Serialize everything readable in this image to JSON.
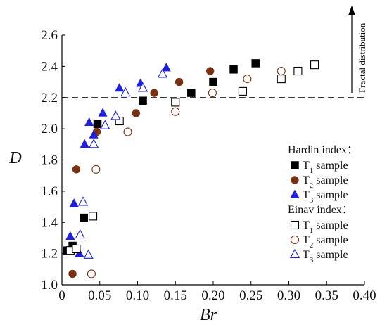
{
  "chart_data": {
    "type": "scatter",
    "title": "",
    "xlabel": "Br",
    "ylabel": "D",
    "xlim": [
      0,
      0.4
    ],
    "ylim": [
      1.0,
      2.6
    ],
    "xticks": [
      "0",
      "0.05",
      "0.10",
      "0.15",
      "0.20",
      "0.25",
      "0.30",
      "0.35",
      "0.40"
    ],
    "yticks": [
      "1.0",
      "1.2",
      "1.4",
      "1.6",
      "1.8",
      "2.0",
      "2.2",
      "2.4",
      "2.6"
    ],
    "grid": false,
    "legend_position": "right",
    "reference_line": {
      "y": 2.2,
      "style": "dashed"
    },
    "annotation": "Fractal distribution",
    "legend_groups": [
      {
        "title": "Hardin index：",
        "entries": [
          "Hardin T1",
          "Hardin T2",
          "Hardin T3"
        ]
      },
      {
        "title": "Einav index：",
        "entries": [
          "Einav T1",
          "Einav T2",
          "Einav T3"
        ]
      }
    ],
    "series": [
      {
        "key": "Hardin T1",
        "name": "T1 sample",
        "index": "Hardin",
        "marker": "square-filled",
        "color": "#000000",
        "points": [
          [
            0.007,
            1.22
          ],
          [
            0.014,
            1.25
          ],
          [
            0.029,
            1.43
          ],
          [
            0.047,
            2.03
          ],
          [
            0.107,
            2.18
          ],
          [
            0.171,
            2.23
          ],
          [
            0.2,
            2.3
          ],
          [
            0.227,
            2.38
          ],
          [
            0.256,
            2.42
          ]
        ]
      },
      {
        "key": "Hardin T2",
        "name": "T2 sample",
        "index": "Hardin",
        "marker": "circle-filled",
        "color": "#7a3012",
        "points": [
          [
            0.014,
            1.07
          ],
          [
            0.019,
            1.74
          ],
          [
            0.046,
            1.98
          ],
          [
            0.098,
            2.1
          ],
          [
            0.122,
            2.23
          ],
          [
            0.155,
            2.3
          ],
          [
            0.196,
            2.37
          ]
        ]
      },
      {
        "key": "Hardin T3",
        "name": "T3 sample",
        "index": "Hardin",
        "marker": "triangle-filled",
        "color": "#1f1fdc",
        "points": [
          [
            0.011,
            1.31
          ],
          [
            0.016,
            1.52
          ],
          [
            0.023,
            1.2
          ],
          [
            0.03,
            1.9
          ],
          [
            0.036,
            2.04
          ],
          [
            0.042,
            1.96
          ],
          [
            0.054,
            2.1
          ],
          [
            0.076,
            2.26
          ],
          [
            0.104,
            2.29
          ],
          [
            0.138,
            2.39
          ]
        ]
      },
      {
        "key": "Einav T1",
        "name": "T1 sample",
        "index": "Einav",
        "marker": "square-open",
        "color": "#000000",
        "points": [
          [
            0.011,
            1.22
          ],
          [
            0.019,
            1.23
          ],
          [
            0.041,
            1.44
          ],
          [
            0.076,
            2.05
          ],
          [
            0.15,
            2.17
          ],
          [
            0.239,
            2.24
          ],
          [
            0.29,
            2.32
          ],
          [
            0.312,
            2.37
          ],
          [
            0.334,
            2.41
          ]
        ]
      },
      {
        "key": "Einav T2",
        "name": "T2 sample",
        "index": "Einav",
        "marker": "circle-open",
        "color": "#7a3012",
        "points": [
          [
            0.039,
            1.07
          ],
          [
            0.045,
            1.74
          ],
          [
            0.087,
            1.98
          ],
          [
            0.15,
            2.11
          ],
          [
            0.199,
            2.23
          ],
          [
            0.245,
            2.32
          ],
          [
            0.29,
            2.37
          ]
        ]
      },
      {
        "key": "Einav T3",
        "name": "T3 sample",
        "index": "Einav",
        "marker": "triangle-open",
        "color": "#1f1fdc",
        "points": [
          [
            0.024,
            1.32
          ],
          [
            0.028,
            1.53
          ],
          [
            0.035,
            1.19
          ],
          [
            0.042,
            1.9
          ],
          [
            0.057,
            2.02
          ],
          [
            0.071,
            2.08
          ],
          [
            0.084,
            2.23
          ],
          [
            0.107,
            2.26
          ],
          [
            0.133,
            2.35
          ]
        ]
      }
    ]
  }
}
